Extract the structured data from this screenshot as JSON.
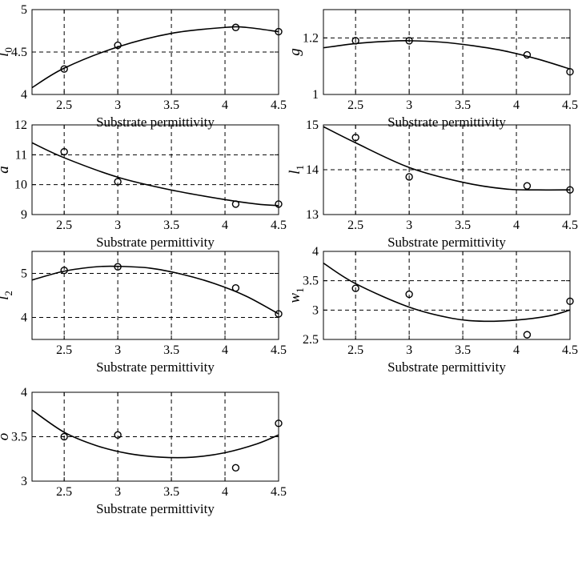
{
  "chart_data": [
    {
      "type": "line",
      "ylabel_main": "l",
      "ylabel_sub": "0",
      "xlabel": "Substrate permittivity",
      "xlim": [
        2.2,
        4.5
      ],
      "ylim": [
        4,
        5
      ],
      "xticks": [
        "2.5",
        "3",
        "3.5",
        "4",
        "4.5"
      ],
      "yticks": [
        "4",
        "4.5",
        "5"
      ],
      "x_grid": [
        2.5,
        3,
        3.5,
        4,
        4.5
      ],
      "y_grid": [
        4.5
      ],
      "points": [
        [
          2.5,
          4.3
        ],
        [
          3,
          4.58
        ],
        [
          4.1,
          4.79
        ],
        [
          4.5,
          4.74
        ]
      ],
      "curve": [
        [
          2.2,
          4.08
        ],
        [
          2.5,
          4.31
        ],
        [
          3,
          4.56
        ],
        [
          3.5,
          4.72
        ],
        [
          4,
          4.79
        ],
        [
          4.2,
          4.79
        ],
        [
          4.5,
          4.74
        ]
      ]
    },
    {
      "type": "line",
      "ylabel_main": "g",
      "ylabel_sub": "",
      "xlabel": "Substrate permittivity",
      "xlim": [
        2.2,
        4.5
      ],
      "ylim": [
        1,
        1.3
      ],
      "xticks": [
        "2.5",
        "3",
        "3.5",
        "4",
        "4.5"
      ],
      "yticks": [
        "1",
        "1.2"
      ],
      "x_grid": [
        2.5,
        3,
        3.5,
        4,
        4.5
      ],
      "y_grid": [
        1.2
      ],
      "points": [
        [
          2.5,
          1.19
        ],
        [
          3,
          1.19
        ],
        [
          4.1,
          1.14
        ],
        [
          4.5,
          1.08
        ]
      ],
      "curve": [
        [
          2.2,
          1.165
        ],
        [
          2.5,
          1.18
        ],
        [
          2.8,
          1.188
        ],
        [
          3,
          1.19
        ],
        [
          3.3,
          1.185
        ],
        [
          3.6,
          1.172
        ],
        [
          3.9,
          1.153
        ],
        [
          4.2,
          1.125
        ],
        [
          4.5,
          1.09
        ]
      ]
    },
    {
      "type": "line",
      "ylabel_main": "a",
      "ylabel_sub": "",
      "xlabel": "Substrate permittivity",
      "xlim": [
        2.2,
        4.5
      ],
      "ylim": [
        9,
        12
      ],
      "xticks": [
        "2.5",
        "3",
        "3.5",
        "4",
        "4.5"
      ],
      "yticks": [
        "9",
        "10",
        "11",
        "12"
      ],
      "x_grid": [
        2.5,
        3,
        3.5,
        4,
        4.5
      ],
      "y_grid": [
        10,
        11
      ],
      "points": [
        [
          2.5,
          11.1
        ],
        [
          3,
          10.1
        ],
        [
          4.1,
          9.35
        ],
        [
          4.5,
          9.35
        ]
      ],
      "curve": [
        [
          2.2,
          11.4
        ],
        [
          2.5,
          10.9
        ],
        [
          3,
          10.25
        ],
        [
          3.5,
          9.82
        ],
        [
          4,
          9.5
        ],
        [
          4.3,
          9.35
        ],
        [
          4.5,
          9.3
        ]
      ]
    },
    {
      "type": "line",
      "ylabel_main": "l",
      "ylabel_sub": "1",
      "xlabel": "Substrate permittivity",
      "xlim": [
        2.2,
        4.5
      ],
      "ylim": [
        13,
        15
      ],
      "xticks": [
        "2.5",
        "3",
        "3.5",
        "4",
        "4.5"
      ],
      "yticks": [
        "13",
        "14",
        "15"
      ],
      "x_grid": [
        2.5,
        3,
        3.5,
        4,
        4.5
      ],
      "y_grid": [
        14
      ],
      "points": [
        [
          2.5,
          14.72
        ],
        [
          3,
          13.84
        ],
        [
          4.1,
          13.64
        ],
        [
          4.5,
          13.55
        ]
      ],
      "curve": [
        [
          2.2,
          14.96
        ],
        [
          2.5,
          14.6
        ],
        [
          3,
          14.05
        ],
        [
          3.5,
          13.72
        ],
        [
          3.9,
          13.57
        ],
        [
          4.2,
          13.55
        ],
        [
          4.5,
          13.55
        ]
      ]
    },
    {
      "type": "line",
      "ylabel_main": "l",
      "ylabel_sub": "2",
      "xlabel": "Substrate permittivity",
      "xlim": [
        2.2,
        4.5
      ],
      "ylim": [
        3.5,
        5.5
      ],
      "xticks": [
        "2.5",
        "3",
        "3.5",
        "4",
        "4.5"
      ],
      "yticks": [
        "4",
        "5"
      ],
      "x_grid": [
        2.5,
        3,
        3.5,
        4,
        4.5
      ],
      "y_grid": [
        4,
        5
      ],
      "points": [
        [
          2.5,
          5.07
        ],
        [
          3,
          5.15
        ],
        [
          4.1,
          4.67
        ],
        [
          4.5,
          4.08
        ]
      ],
      "curve": [
        [
          2.2,
          4.85
        ],
        [
          2.5,
          5.05
        ],
        [
          2.8,
          5.15
        ],
        [
          3,
          5.16
        ],
        [
          3.3,
          5.12
        ],
        [
          3.6,
          4.98
        ],
        [
          3.9,
          4.77
        ],
        [
          4.2,
          4.48
        ],
        [
          4.5,
          4.08
        ]
      ]
    },
    {
      "type": "line",
      "ylabel_main": "w",
      "ylabel_sub": "1",
      "xlabel": "Substrate permittivity",
      "xlim": [
        2.2,
        4.5
      ],
      "ylim": [
        2.5,
        4
      ],
      "xticks": [
        "2.5",
        "3",
        "3.5",
        "4",
        "4.5"
      ],
      "yticks": [
        "2.5",
        "3",
        "3.5",
        "4"
      ],
      "x_grid": [
        2.5,
        3,
        3.5,
        4,
        4.5
      ],
      "y_grid": [
        3,
        3.5
      ],
      "points": [
        [
          2.5,
          3.37
        ],
        [
          3,
          3.27
        ],
        [
          4.1,
          2.58
        ],
        [
          4.5,
          3.15
        ]
      ],
      "curve": [
        [
          2.2,
          3.8
        ],
        [
          2.5,
          3.45
        ],
        [
          3,
          3.05
        ],
        [
          3.4,
          2.86
        ],
        [
          3.7,
          2.81
        ],
        [
          4,
          2.83
        ],
        [
          4.3,
          2.9
        ],
        [
          4.5,
          3.0
        ]
      ]
    },
    {
      "type": "line",
      "ylabel_main": "o",
      "ylabel_sub": "",
      "xlabel": "Substrate permittivity",
      "xlim": [
        2.2,
        4.5
      ],
      "ylim": [
        3,
        4
      ],
      "xticks": [
        "2.5",
        "3",
        "3.5",
        "4",
        "4.5"
      ],
      "yticks": [
        "3",
        "3.5",
        "4"
      ],
      "x_grid": [
        2.5,
        3,
        3.5,
        4,
        4.5
      ],
      "y_grid": [
        3.5
      ],
      "points": [
        [
          2.5,
          3.5
        ],
        [
          3,
          3.52
        ],
        [
          4.1,
          3.15
        ],
        [
          4.5,
          3.65
        ]
      ],
      "curve": [
        [
          2.2,
          3.8
        ],
        [
          2.5,
          3.55
        ],
        [
          2.8,
          3.4
        ],
        [
          3.1,
          3.31
        ],
        [
          3.4,
          3.27
        ],
        [
          3.7,
          3.27
        ],
        [
          4.0,
          3.32
        ],
        [
          4.3,
          3.42
        ],
        [
          4.5,
          3.52
        ]
      ]
    }
  ]
}
